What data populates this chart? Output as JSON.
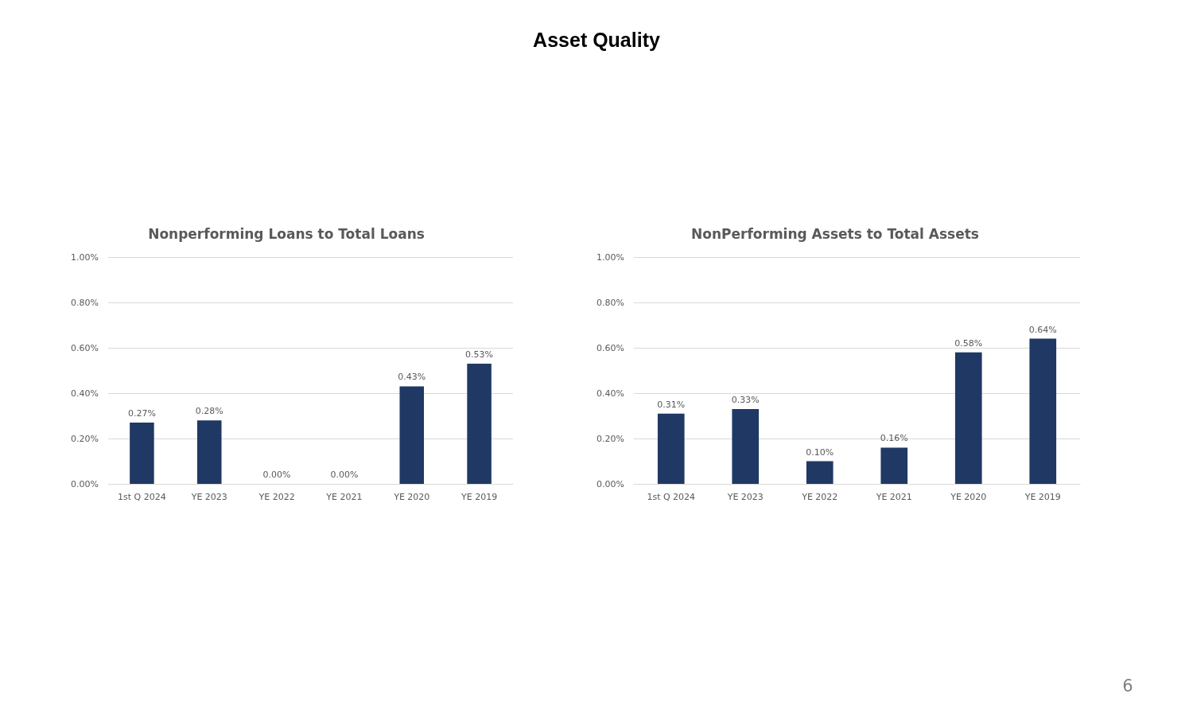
{
  "chart_data": [
    {
      "type": "bar",
      "title": "Nonperforming Loans to Total Loans",
      "categories": [
        "1st Q 2024",
        "YE 2023",
        "YE 2022",
        "YE 2021",
        "YE 2020",
        "YE 2019"
      ],
      "values": [
        0.27,
        0.28,
        0,
        0,
        0.43,
        0.53
      ],
      "value_labels": [
        "0.27%",
        "0.28%",
        "0.00%",
        "0.00%",
        "0.43%",
        "0.53%"
      ],
      "color": "#203864",
      "ylim": [
        0,
        1
      ],
      "yticks": [
        {
          "value": 0,
          "label": "0.00%"
        },
        {
          "value": 0.2,
          "label": "0.20%"
        },
        {
          "value": 0.4,
          "label": "0.40%"
        },
        {
          "value": 0.6,
          "label": "0.60%"
        },
        {
          "value": 0.8,
          "label": "0.80%"
        },
        {
          "value": 1,
          "label": "1.00%"
        }
      ],
      "grid": "y",
      "annotations": [
        "Asset Quality"
      ]
    },
    {
      "type": "bar",
      "title": "NonPerforming Assets to Total Assets",
      "categories": [
        "1st Q 2024",
        "YE 2023",
        "YE 2022",
        "YE 2021",
        "YE 2020",
        "YE 2019"
      ],
      "values": [
        0.31,
        0.33,
        0.1,
        0.16,
        0.58,
        0.64
      ],
      "value_labels": [
        "0.31%",
        "0.33%",
        "0.10%",
        "0.16%",
        "0.58%",
        "0.64%"
      ],
      "color": "#203864",
      "ylim": [
        0,
        1
      ],
      "yticks": [
        {
          "value": 0,
          "label": "0.00%"
        },
        {
          "value": 0.2,
          "label": "0.20%"
        },
        {
          "value": 0.4,
          "label": "0.40%"
        },
        {
          "value": 0.6,
          "label": "0.60%"
        },
        {
          "value": 0.8,
          "label": "0.80%"
        },
        {
          "value": 1,
          "label": "1.00%"
        }
      ],
      "grid": "y",
      "annotations": [
        "6"
      ]
    }
  ]
}
